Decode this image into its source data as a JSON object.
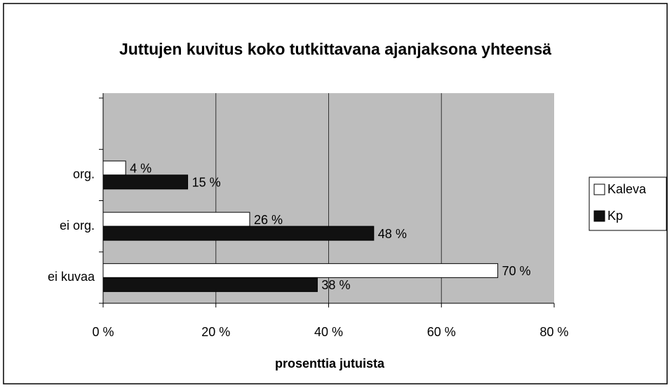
{
  "chart_data": {
    "type": "hbar",
    "title": "Juttujen kuvitus koko tutkittavana ajanjaksona yhteensä",
    "x_label": "prosenttia jutuista",
    "categories": [
      null,
      "org.",
      "ei org.",
      "ei kuvaa"
    ],
    "series": [
      {
        "name": "Kaleva",
        "color": "#ffffff",
        "values": [
          null,
          4,
          26,
          70
        ],
        "value_labels": [
          null,
          "4 %",
          "26 %",
          "70 %"
        ]
      },
      {
        "name": "Kp",
        "color": "#111111",
        "values": [
          null,
          15,
          48,
          38
        ],
        "value_labels": [
          null,
          "15 %",
          "48 %",
          "38 %"
        ]
      }
    ],
    "xlim": [
      0,
      80
    ],
    "xticks": [
      {
        "value": 0,
        "label": "0 %"
      },
      {
        "value": 20,
        "label": "20 %"
      },
      {
        "value": 40,
        "label": "40 %"
      },
      {
        "value": 60,
        "label": "60 %"
      },
      {
        "value": 80,
        "label": "80 %"
      }
    ],
    "grid": true,
    "legend": "right"
  }
}
